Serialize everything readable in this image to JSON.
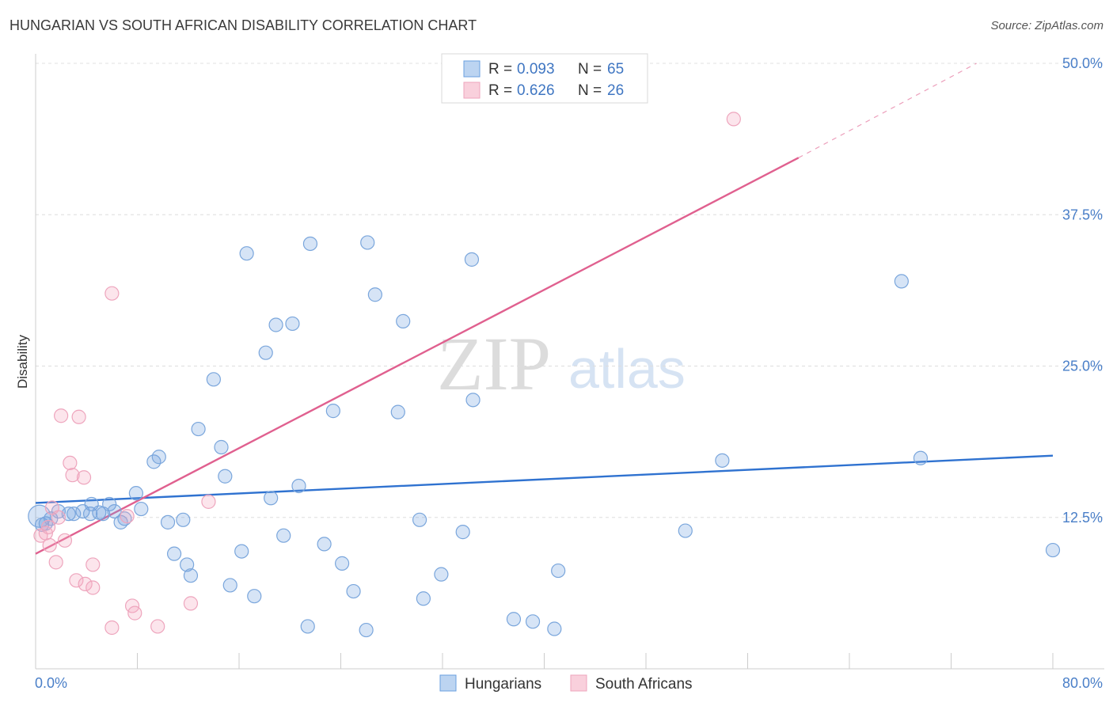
{
  "title": "HUNGARIAN VS SOUTH AFRICAN DISABILITY CORRELATION CHART",
  "source": "Source: ZipAtlas.com",
  "chart_data": {
    "type": "scatter",
    "title": "HUNGARIAN VS SOUTH AFRICAN DISABILITY CORRELATION CHART",
    "xlabel": "",
    "ylabel": "Disability",
    "xlim": [
      0,
      80
    ],
    "ylim": [
      0,
      50
    ],
    "x_tick_labels": [
      "0.0%",
      "80.0%"
    ],
    "y_ticks": [
      12.5,
      25.0,
      37.5,
      50.0
    ],
    "y_tick_labels": [
      "12.5%",
      "25.0%",
      "37.5%",
      "50.0%"
    ],
    "grid": true,
    "legend_position": "top-center",
    "watermark": "ZIPatlas",
    "series": [
      {
        "name": "Hungarians",
        "color": "#6a9fe0",
        "line_color": "#2f72d0",
        "R": "0.093",
        "N": "65",
        "R_label": "R =",
        "N_label": "N =",
        "trend": {
          "x": [
            0,
            80
          ],
          "y": [
            13.7,
            17.6
          ]
        },
        "points": [
          [
            0.3,
            12.6
          ],
          [
            0.5,
            11.9
          ],
          [
            0.8,
            12.0
          ],
          [
            1.2,
            12.4
          ],
          [
            1.8,
            13.0
          ],
          [
            2.6,
            12.8
          ],
          [
            3.0,
            12.8
          ],
          [
            3.7,
            13.0
          ],
          [
            4.3,
            12.8
          ],
          [
            4.4,
            13.6
          ],
          [
            5.0,
            12.9
          ],
          [
            5.3,
            12.8
          ],
          [
            5.8,
            13.6
          ],
          [
            6.2,
            13.0
          ],
          [
            6.7,
            12.1
          ],
          [
            7.0,
            12.4
          ],
          [
            7.9,
            14.5
          ],
          [
            8.3,
            13.2
          ],
          [
            9.3,
            17.1
          ],
          [
            9.7,
            17.5
          ],
          [
            10.4,
            12.1
          ],
          [
            10.9,
            9.5
          ],
          [
            11.6,
            12.3
          ],
          [
            11.9,
            8.6
          ],
          [
            12.2,
            7.7
          ],
          [
            12.8,
            19.8
          ],
          [
            14.0,
            23.9
          ],
          [
            14.6,
            18.3
          ],
          [
            14.9,
            15.9
          ],
          [
            15.3,
            6.9
          ],
          [
            16.2,
            9.7
          ],
          [
            16.6,
            34.3
          ],
          [
            17.2,
            6.0
          ],
          [
            18.1,
            26.1
          ],
          [
            18.5,
            14.1
          ],
          [
            18.9,
            28.4
          ],
          [
            19.5,
            11.0
          ],
          [
            20.2,
            28.5
          ],
          [
            20.7,
            15.1
          ],
          [
            21.6,
            35.1
          ],
          [
            21.4,
            3.5
          ],
          [
            22.7,
            10.3
          ],
          [
            23.4,
            21.3
          ],
          [
            24.1,
            8.7
          ],
          [
            25.0,
            6.4
          ],
          [
            26.0,
            3.2
          ],
          [
            26.1,
            35.2
          ],
          [
            26.7,
            30.9
          ],
          [
            28.5,
            21.2
          ],
          [
            28.9,
            28.7
          ],
          [
            30.2,
            12.3
          ],
          [
            30.5,
            5.8
          ],
          [
            31.9,
            7.8
          ],
          [
            33.6,
            11.3
          ],
          [
            34.3,
            33.8
          ],
          [
            34.4,
            22.2
          ],
          [
            37.6,
            4.1
          ],
          [
            39.1,
            3.9
          ],
          [
            40.8,
            3.3
          ],
          [
            41.1,
            8.1
          ],
          [
            51.1,
            11.4
          ],
          [
            54.0,
            17.2
          ],
          [
            68.1,
            32.0
          ],
          [
            69.6,
            17.4
          ],
          [
            80.0,
            9.8
          ]
        ]
      },
      {
        "name": "South Africans",
        "color": "#f4a9c0",
        "line_color": "#e0608f",
        "R": "0.626",
        "N": "26",
        "R_label": "R =",
        "N_label": "N =",
        "trend": {
          "x": [
            0,
            60
          ],
          "y": [
            9.5,
            42.2
          ]
        },
        "trend_dashed": {
          "x": [
            60,
            74
          ],
          "y": [
            42.2,
            50.0
          ]
        },
        "points": [
          [
            0.4,
            11.0
          ],
          [
            0.8,
            11.2
          ],
          [
            1.0,
            11.7
          ],
          [
            1.1,
            10.2
          ],
          [
            1.3,
            13.3
          ],
          [
            1.6,
            8.8
          ],
          [
            1.8,
            12.5
          ],
          [
            2.0,
            20.9
          ],
          [
            2.3,
            10.6
          ],
          [
            2.7,
            17.0
          ],
          [
            2.9,
            16.0
          ],
          [
            3.2,
            7.3
          ],
          [
            3.4,
            20.8
          ],
          [
            3.8,
            15.8
          ],
          [
            3.9,
            7.0
          ],
          [
            4.5,
            8.6
          ],
          [
            4.5,
            6.7
          ],
          [
            6.0,
            31.0
          ],
          [
            6.0,
            3.4
          ],
          [
            7.2,
            12.6
          ],
          [
            7.6,
            5.2
          ],
          [
            7.8,
            4.6
          ],
          [
            9.6,
            3.5
          ],
          [
            12.2,
            5.4
          ],
          [
            13.6,
            13.8
          ],
          [
            54.9,
            45.4
          ]
        ]
      }
    ]
  }
}
